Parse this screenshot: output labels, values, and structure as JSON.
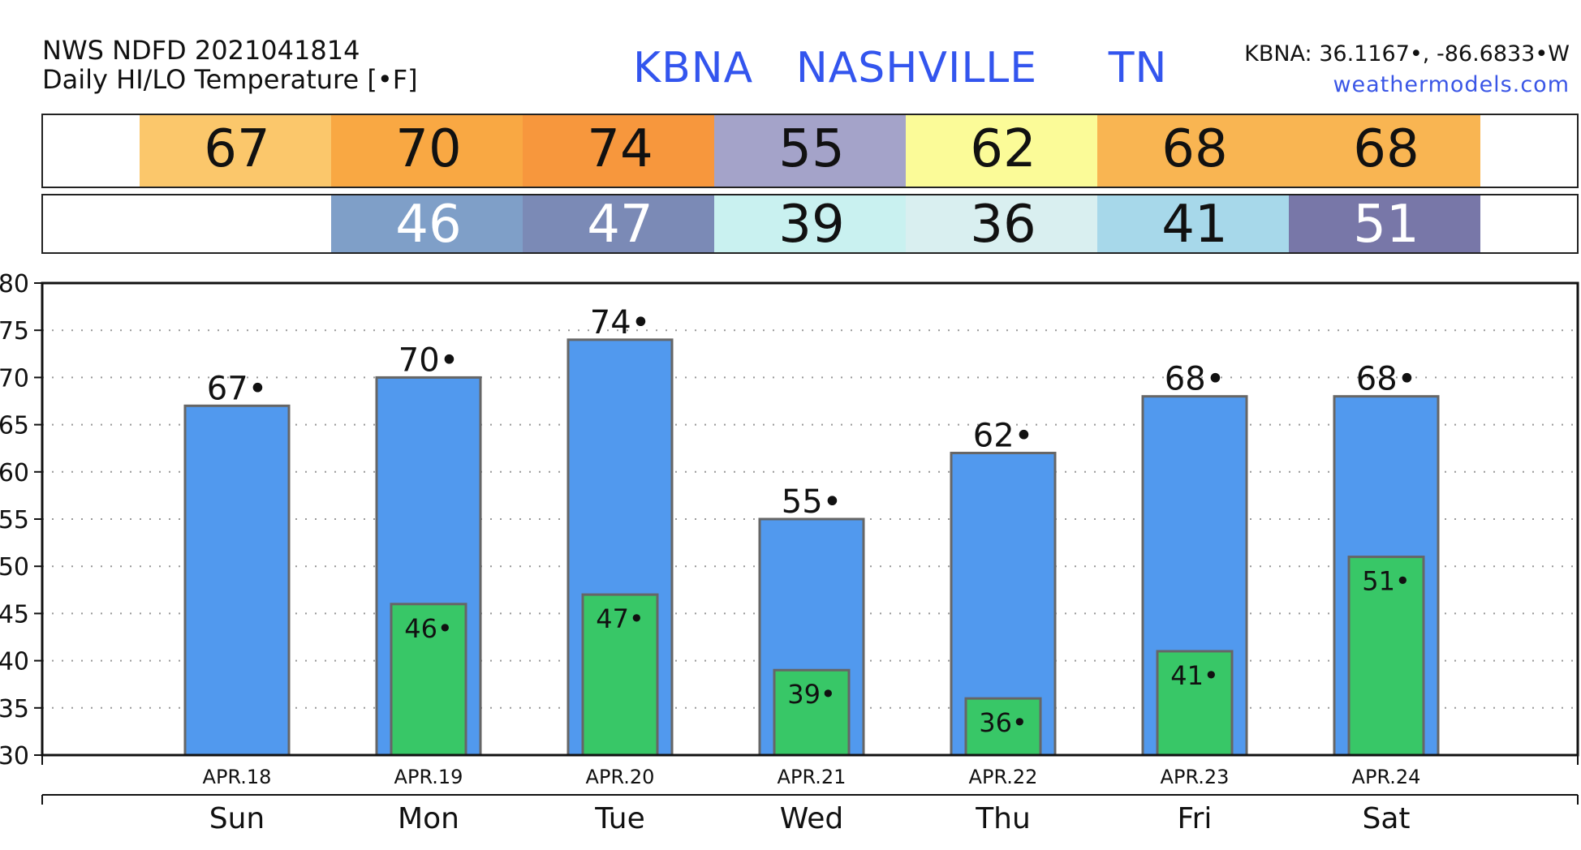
{
  "header": {
    "source": "NWS NDFD 2021041814",
    "subtitle": "Daily HI/LO Temperature [•F]",
    "station": "KBNA   NASHVILLE     TN",
    "coords": "KBNA: 36.1167•, -86.6833•W",
    "site": "weathermodels.com"
  },
  "strips": {
    "hi": [
      {
        "value": "67",
        "color": "#fbc76b",
        "text_color": "#111111"
      },
      {
        "value": "70",
        "color": "#f9a843",
        "text_color": "#111111"
      },
      {
        "value": "74",
        "color": "#f7973d",
        "text_color": "#111111"
      },
      {
        "value": "55",
        "color": "#a4a3c9",
        "text_color": "#111111"
      },
      {
        "value": "62",
        "color": "#fbfb98",
        "text_color": "#111111"
      },
      {
        "value": "68",
        "color": "#f9b552",
        "text_color": "#111111"
      },
      {
        "value": "68",
        "color": "#f9b552",
        "text_color": "#111111"
      }
    ],
    "lo": [
      {
        "value": "",
        "color": "#ffffff",
        "text_color": "#111111"
      },
      {
        "value": "46",
        "color": "#7f9fc8",
        "text_color": "#ffffff"
      },
      {
        "value": "47",
        "color": "#7b8ab6",
        "text_color": "#ffffff"
      },
      {
        "value": "39",
        "color": "#c9f1f0",
        "text_color": "#111111"
      },
      {
        "value": "36",
        "color": "#d9eff0",
        "text_color": "#111111"
      },
      {
        "value": "41",
        "color": "#a7d8ea",
        "text_color": "#111111"
      },
      {
        "value": "51",
        "color": "#7877a8",
        "text_color": "#ffffff"
      }
    ]
  },
  "chart_data": {
    "type": "bar",
    "categories": [
      "Sun",
      "Mon",
      "Tue",
      "Wed",
      "Thu",
      "Fri",
      "Sat"
    ],
    "dates": [
      "APR.18",
      "APR.19",
      "APR.20",
      "APR.21",
      "APR.22",
      "APR.23",
      "APR.24"
    ],
    "series": [
      {
        "values": [
          67,
          70,
          74,
          55,
          62,
          68,
          68
        ],
        "color": "#5199ee",
        "labels": [
          "67•",
          "70•",
          "74•",
          "55•",
          "62•",
          "68•",
          "68•"
        ]
      },
      {
        "values": [
          null,
          46,
          47,
          39,
          36,
          41,
          51
        ],
        "color": "#38c767",
        "labels": [
          "",
          "46•",
          "47•",
          "39•",
          "36•",
          "41•",
          "51•"
        ]
      }
    ],
    "ylim": [
      30,
      80
    ],
    "yticks": [
      "30",
      "35",
      "40",
      "45",
      "50",
      "55",
      "60",
      "65",
      "70",
      "75",
      "80"
    ],
    "grid": true
  }
}
